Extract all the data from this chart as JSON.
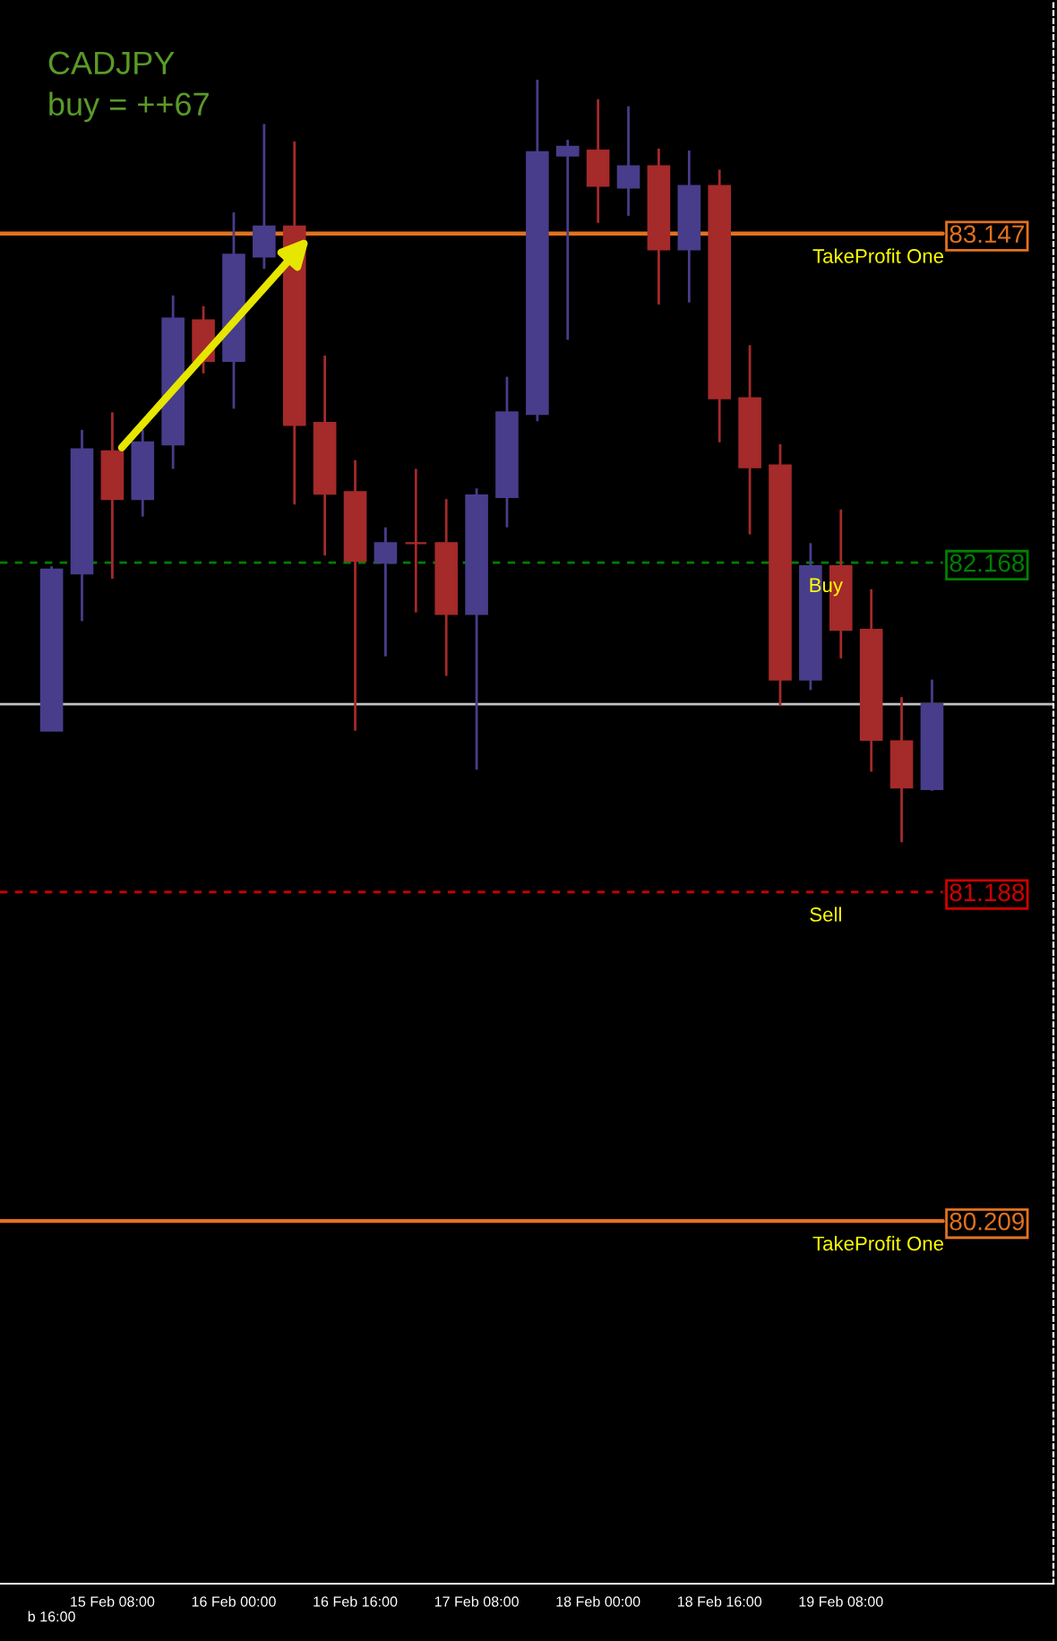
{
  "chart_data": {
    "type": "candlestick",
    "title": "CADJPY",
    "annotations": [
      "buy = ++67"
    ],
    "categories": [
      "b 16:00",
      null,
      "15 Feb 08:00",
      null,
      null,
      null,
      "16 Feb 00:00",
      null,
      null,
      null,
      "16 Feb 16:00",
      null,
      null,
      null,
      "17 Feb 08:00",
      null,
      null,
      null,
      "18 Feb 00:00",
      null,
      null,
      null,
      "18 Feb 16:00",
      null,
      null,
      null,
      "19 Feb 08:00",
      null,
      null,
      null
    ],
    "ohlc": [
      [
        81.668,
        82.157,
        81.668,
        82.147
      ],
      [
        82.136,
        82.563,
        81.994,
        82.505
      ],
      [
        82.499,
        82.615,
        82.12,
        82.357
      ],
      [
        82.357,
        82.563,
        82.305,
        82.526
      ],
      [
        82.52,
        82.963,
        82.447,
        82.894
      ],
      [
        82.889,
        82.931,
        82.731,
        82.768
      ],
      [
        82.768,
        83.21,
        82.626,
        83.084
      ],
      [
        83.079,
        83.473,
        83.042,
        83.168
      ],
      [
        83.168,
        83.421,
        82.341,
        82.578
      ],
      [
        82.584,
        82.784,
        82.189,
        82.373
      ],
      [
        82.378,
        82.473,
        81.668,
        82.173
      ],
      [
        82.168,
        82.273,
        81.889,
        82.226
      ],
      [
        82.226,
        82.447,
        82.02,
        82.226
      ],
      [
        82.226,
        82.357,
        81.831,
        82.015
      ],
      [
        82.015,
        82.389,
        81.552,
        82.368
      ],
      [
        82.363,
        82.721,
        82.273,
        82.615
      ],
      [
        82.61,
        83.605,
        82.589,
        83.389
      ],
      [
        83.379,
        83.426,
        82.831,
        83.405
      ],
      [
        83.394,
        83.547,
        83.179,
        83.289
      ],
      [
        83.284,
        83.526,
        83.2,
        83.347
      ],
      [
        83.347,
        83.4,
        82.936,
        83.1
      ],
      [
        83.1,
        83.394,
        82.942,
        83.289
      ],
      [
        83.289,
        83.337,
        82.526,
        82.657
      ],
      [
        82.657,
        82.815,
        82.252,
        82.452
      ],
      [
        82.457,
        82.52,
        81.741,
        81.82
      ],
      [
        81.82,
        82.226,
        81.789,
        82.157
      ],
      [
        82.157,
        82.326,
        81.883,
        81.968
      ],
      [
        81.968,
        82.089,
        81.546,
        81.641
      ],
      [
        81.636,
        81.768,
        81.336,
        81.499
      ],
      [
        81.494,
        81.82,
        81.489,
        81.747
      ]
    ],
    "colors": [
      "#483d8b",
      "#483d8b",
      "#a52a2a",
      "#483d8b",
      "#483d8b",
      "#a52a2a",
      "#483d8b",
      "#483d8b",
      "#a52a2a",
      "#a52a2a",
      "#a52a2a",
      "#483d8b",
      "#a52a2a",
      "#a52a2a",
      "#483d8b",
      "#483d8b",
      "#483d8b",
      "#483d8b",
      "#a52a2a",
      "#483d8b",
      "#a52a2a",
      "#483d8b",
      "#a52a2a",
      "#a52a2a",
      "#a52a2a",
      "#483d8b",
      "#a52a2a",
      "#a52a2a",
      "#a52a2a",
      "#483d8b"
    ],
    "ylim": [
      79.13,
      83.842
    ],
    "yticks": [
      83.147,
      82.168,
      81.188,
      80.209
    ],
    "ref_lines": [
      {
        "axis": "y",
        "value": 83.147,
        "label": "TakeProfit One",
        "color": "#e2721e",
        "line_style": "solid"
      },
      {
        "axis": "y",
        "value": 82.168,
        "label": "Buy",
        "color": "#008000",
        "line_style": "dashed"
      },
      {
        "axis": "y",
        "value": 81.188,
        "label": "Sell",
        "color": "#d00000",
        "line_style": "dashed"
      },
      {
        "axis": "y",
        "value": 80.209,
        "label": "TakeProfit One",
        "color": "#e2721e",
        "line_style": "solid"
      },
      {
        "axis": "y",
        "value": 81.747,
        "color": "#c0c0c8",
        "line_style": "solid"
      }
    ],
    "grid": false,
    "legend": false
  }
}
